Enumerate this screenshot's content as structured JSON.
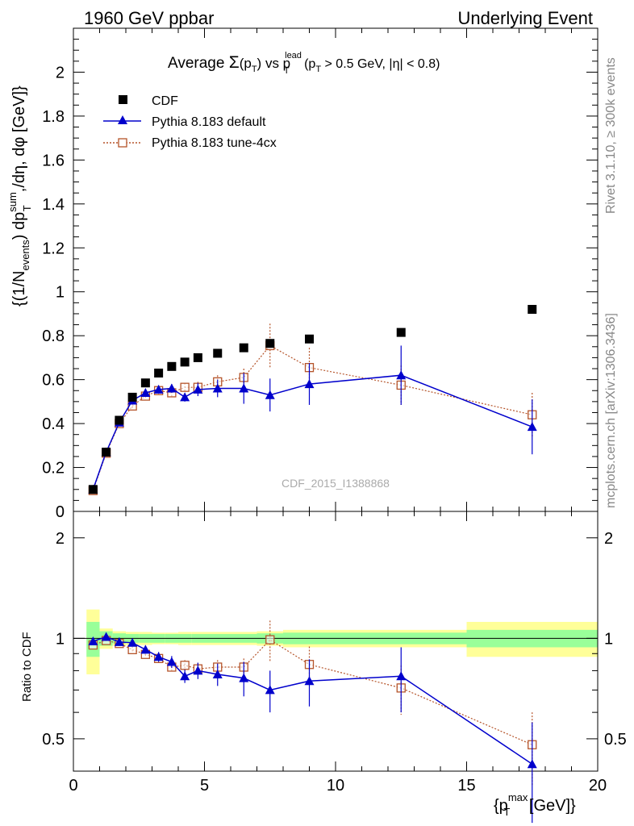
{
  "header": {
    "left": "1960 GeV ppbar",
    "right": "Underlying Event"
  },
  "side": {
    "rivet": "Rivet 3.1.10, ≥ 300k events",
    "mcplots": "mcplots.cern.ch [arXiv:1306.3436]"
  },
  "chart_data": {
    "type": "scatter",
    "title": {
      "prefix": "Average ",
      "sigma": "Σ",
      "pt_open": "(p",
      "pt_sub": "T",
      "pt_close": ")",
      "vs": " vs p",
      "lead_sup": "lead",
      "lead_sub": "T",
      "cut_open": " (p",
      "cut_sub": "T",
      "cut_rest": " > 0.5 GeV, |η| < 0.8)"
    },
    "watermark": "CDF_2015_I1388868",
    "ylabel": {
      "p1": "{(1/N",
      "events_sub": "events",
      "p2": ") dp",
      "sum_sup": "sum",
      "t_sub": "T",
      "p3": ",/dη, dφ [GeV]}"
    },
    "ratio_ylabel": "Ratio to CDF",
    "xlabel": {
      "open": "{p",
      "max_sup": "max",
      "t_sub": "T",
      "close": " [GeV]}"
    },
    "xlim": [
      0,
      20
    ],
    "ylim": [
      0,
      2.2
    ],
    "ratio_ylim": [
      0.4,
      2.4
    ],
    "xticks": [
      "0",
      "5",
      "10",
      "15",
      "20"
    ],
    "yticks": [
      "0",
      "0.2",
      "0.4",
      "0.6",
      "0.8",
      "1",
      "1.2",
      "1.4",
      "1.6",
      "1.8",
      "2"
    ],
    "ratio_yticks": [
      "0.5",
      "1",
      "2"
    ],
    "legend": {
      "placement": "top-left",
      "entries": [
        "CDF",
        "Pythia 8.183 default",
        "Pythia 8.183 tune-4cx"
      ]
    },
    "series": [
      {
        "name": "CDF",
        "color": "#000000",
        "x": [
          0.75,
          1.25,
          1.75,
          2.25,
          2.75,
          3.25,
          3.75,
          4.25,
          4.75,
          5.5,
          6.5,
          7.5,
          9.0,
          12.5,
          17.5
        ],
        "y": [
          0.1,
          0.27,
          0.415,
          0.52,
          0.585,
          0.63,
          0.66,
          0.68,
          0.7,
          0.72,
          0.745,
          0.765,
          0.785,
          0.815,
          0.92
        ]
      },
      {
        "name": "Pythia 8.183 default",
        "color": "#0000cc",
        "x": [
          0.75,
          1.25,
          1.75,
          2.25,
          2.75,
          3.25,
          3.75,
          4.25,
          4.75,
          5.5,
          6.5,
          7.5,
          9.0,
          12.5,
          17.5
        ],
        "y": [
          0.1,
          0.27,
          0.405,
          0.505,
          0.54,
          0.555,
          0.56,
          0.52,
          0.555,
          0.56,
          0.56,
          0.53,
          0.58,
          0.62,
          0.385
        ],
        "err": [
          0.005,
          0.008,
          0.01,
          0.012,
          0.015,
          0.018,
          0.02,
          0.02,
          0.03,
          0.04,
          0.07,
          0.075,
          0.095,
          0.135,
          0.125
        ],
        "ratio": [
          0.98,
          1.01,
          0.975,
          0.97,
          0.925,
          0.88,
          0.85,
          0.77,
          0.8,
          0.78,
          0.76,
          0.7,
          0.745,
          0.77,
          0.42
        ],
        "ratio_err": [
          0.01,
          0.01,
          0.015,
          0.02,
          0.025,
          0.03,
          0.035,
          0.035,
          0.045,
          0.06,
          0.09,
          0.1,
          0.12,
          0.17,
          0.14
        ]
      },
      {
        "name": "Pythia 8.183 tune-4cx",
        "color": "#b5542a",
        "x": [
          0.75,
          1.25,
          1.75,
          2.25,
          2.75,
          3.25,
          3.75,
          4.25,
          4.75,
          5.5,
          6.5,
          7.5,
          9.0,
          12.5,
          17.5
        ],
        "y": [
          0.095,
          0.265,
          0.4,
          0.48,
          0.525,
          0.55,
          0.54,
          0.565,
          0.565,
          0.59,
          0.61,
          0.755,
          0.655,
          0.575,
          0.44
        ],
        "err": [
          0.005,
          0.008,
          0.01,
          0.012,
          0.015,
          0.018,
          0.02,
          0.02,
          0.025,
          0.03,
          0.04,
          0.1,
          0.09,
          0.09,
          0.1
        ],
        "ratio": [
          0.955,
          0.985,
          0.965,
          0.925,
          0.895,
          0.87,
          0.82,
          0.83,
          0.81,
          0.82,
          0.82,
          0.99,
          0.835,
          0.71,
          0.48
        ],
        "ratio_err": [
          0.01,
          0.01,
          0.015,
          0.02,
          0.02,
          0.025,
          0.025,
          0.03,
          0.035,
          0.04,
          0.05,
          0.14,
          0.11,
          0.12,
          0.12
        ]
      }
    ],
    "data_band": {
      "x_edges": [
        0.5,
        1.0,
        1.5,
        2.0,
        2.5,
        3.0,
        3.5,
        4.0,
        4.5,
        5.0,
        6.0,
        7.0,
        8.0,
        10.0,
        15.0,
        20.0
      ],
      "inner_half": [
        0.12,
        0.05,
        0.035,
        0.03,
        0.03,
        0.03,
        0.03,
        0.03,
        0.03,
        0.03,
        0.03,
        0.035,
        0.04,
        0.04,
        0.06
      ],
      "outer_half": [
        0.22,
        0.07,
        0.05,
        0.045,
        0.045,
        0.04,
        0.04,
        0.045,
        0.045,
        0.045,
        0.045,
        0.05,
        0.06,
        0.06,
        0.12
      ],
      "inner_color": "#99ff99",
      "outer_color": "#ffff99"
    }
  }
}
